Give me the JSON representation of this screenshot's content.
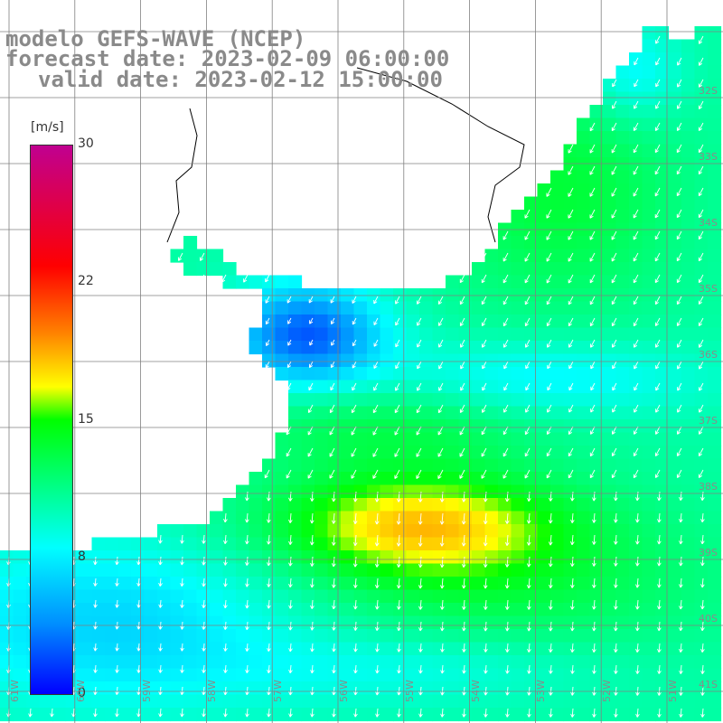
{
  "title": {
    "line1": "modelo GEFS-WAVE (NCEP)",
    "line2": "forecast date: 2023-02-09 06:00:00",
    "line3": "valid date: 2023-02-12 15:00:00"
  },
  "colorbar": {
    "units": "[m/s]",
    "ticks": [
      "30",
      "22",
      "15",
      "8",
      "0"
    ],
    "colors": [
      "#0000ff",
      "#0090ff",
      "#00ffff",
      "#00ff00",
      "#ffff00",
      "#ff8000",
      "#ff0000",
      "#c00090"
    ]
  },
  "lat_labels": [
    "32S",
    "33S",
    "34S",
    "35S",
    "36S",
    "37S",
    "38S",
    "39S",
    "40S",
    "41S"
  ],
  "lon_labels": [
    "61W",
    "60W",
    "59W",
    "58W",
    "57W",
    "56W",
    "55W",
    "54W",
    "53W",
    "52W",
    "51W"
  ]
}
